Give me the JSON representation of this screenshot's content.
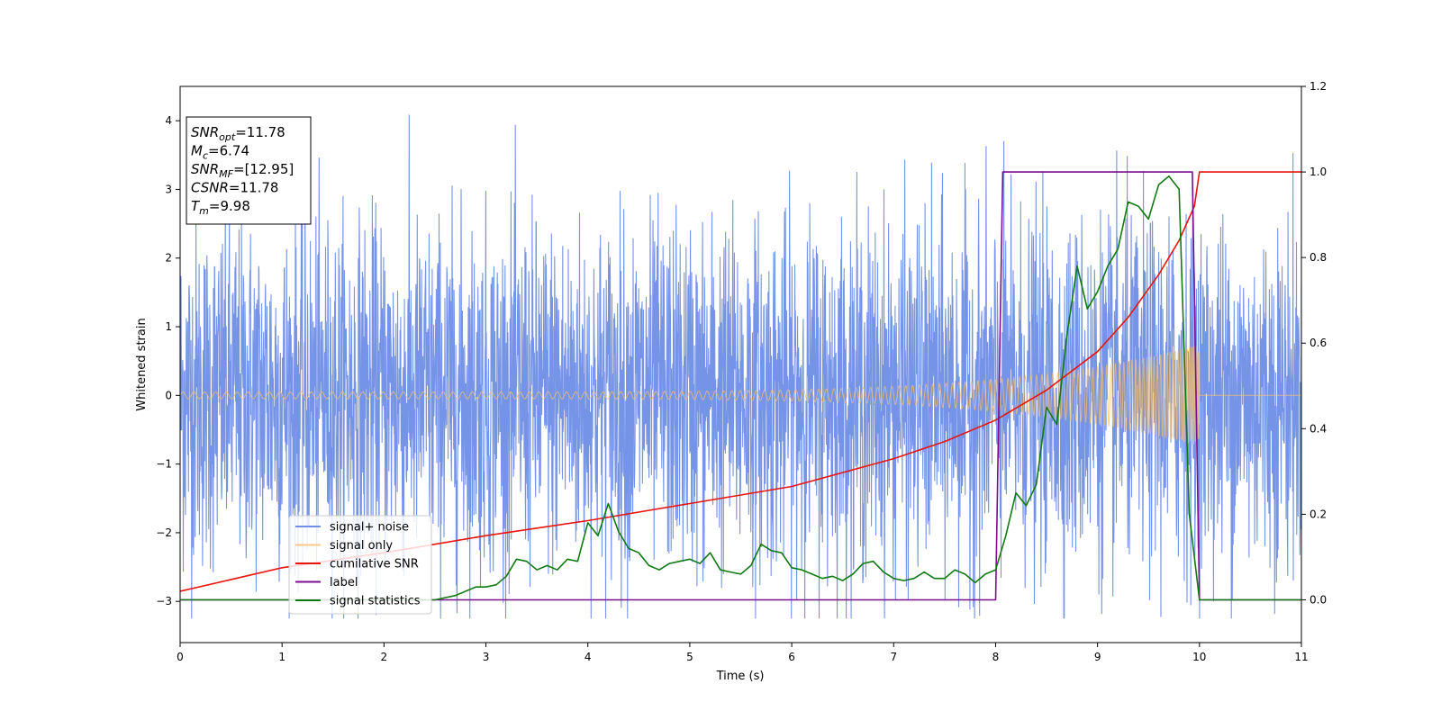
{
  "chart_data": {
    "type": "line",
    "xlabel": "Time (s)",
    "ylabel": "Whitened strain",
    "xlim": [
      0,
      11
    ],
    "ylim": [
      -3.6,
      4.5
    ],
    "y2lim": [
      -0.1,
      1.2
    ],
    "x_ticks": [
      0,
      1,
      2,
      3,
      4,
      5,
      6,
      7,
      8,
      9,
      10,
      11
    ],
    "y_ticks": [
      -3,
      -2,
      -1,
      0,
      1,
      2,
      3,
      4
    ],
    "y_tick_labels": [
      "−3",
      "−2",
      "−1",
      "0",
      "1",
      "2",
      "3",
      "4"
    ],
    "y2_ticks": [
      0.0,
      0.2,
      0.4,
      0.6,
      0.8,
      1.0,
      1.2
    ],
    "y2_tick_labels": [
      "0.0",
      "0.2",
      "0.4",
      "0.6",
      "0.8",
      "1.0",
      "1.2"
    ],
    "grid": false,
    "legend_placement": "lower-left",
    "info_box": [
      {
        "main": "SNR",
        "sub": "opt",
        "rest": "=11.78"
      },
      {
        "main": "M",
        "sub": "c",
        "rest": "=6.74"
      },
      {
        "main": "SNR",
        "sub": "MF",
        "rest": "=[12.95]"
      },
      {
        "main": "CSNR",
        "sub": "",
        "rest": "=11.78"
      },
      {
        "main": "T",
        "sub": "m",
        "rest": "=9.98"
      }
    ],
    "series": [
      {
        "name": "signal+ noise",
        "color": "#6f8ee6",
        "axis": "left",
        "kind": "noise",
        "typical_band": [
          -1.6,
          1.6
        ],
        "peak_max": 4.15,
        "peak_min": -3.25
      },
      {
        "name": "signal only",
        "color": "#f5c06a",
        "axis": "left",
        "kind": "chirp",
        "amplitude_start": 0.05,
        "amplitude_end": 0.75,
        "t_merge": 10.0
      },
      {
        "name": "cumilative SNR",
        "color": "#e8140c",
        "axis": "right",
        "x": [
          0,
          1,
          2,
          3,
          4,
          5,
          6,
          7,
          7.5,
          8,
          8.5,
          9,
          9.3,
          9.6,
          9.8,
          9.95,
          10.0,
          11
        ],
        "y": [
          0.02,
          0.075,
          0.11,
          0.15,
          0.185,
          0.225,
          0.265,
          0.33,
          0.37,
          0.42,
          0.49,
          0.58,
          0.66,
          0.76,
          0.84,
          0.92,
          1.0,
          1.0
        ]
      },
      {
        "name": "label",
        "color": "#7b0d8f",
        "axis": "right",
        "x": [
          0,
          8.0,
          8.07,
          9.93,
          10.0,
          11
        ],
        "y": [
          0,
          0,
          1.0,
          1.0,
          0,
          0
        ]
      },
      {
        "name": "signal statistics",
        "color": "#0f7a12",
        "axis": "right",
        "x": [
          0,
          2.5,
          2.7,
          2.9,
          3.0,
          3.1,
          3.2,
          3.3,
          3.4,
          3.5,
          3.6,
          3.7,
          3.8,
          3.9,
          4.0,
          4.1,
          4.2,
          4.3,
          4.4,
          4.5,
          4.6,
          4.7,
          4.8,
          4.9,
          5.0,
          5.1,
          5.2,
          5.3,
          5.4,
          5.5,
          5.6,
          5.7,
          5.8,
          5.9,
          6.0,
          6.1,
          6.2,
          6.3,
          6.4,
          6.5,
          6.6,
          6.7,
          6.8,
          6.9,
          7.0,
          7.1,
          7.2,
          7.3,
          7.4,
          7.5,
          7.6,
          7.7,
          7.8,
          7.9,
          8.0,
          8.1,
          8.2,
          8.3,
          8.4,
          8.5,
          8.6,
          8.7,
          8.8,
          8.9,
          9.0,
          9.1,
          9.2,
          9.3,
          9.4,
          9.5,
          9.6,
          9.7,
          9.8,
          9.9,
          10.0,
          10.1,
          11
        ],
        "y": [
          0.0,
          0.0,
          0.01,
          0.03,
          0.03,
          0.035,
          0.055,
          0.095,
          0.09,
          0.07,
          0.08,
          0.07,
          0.095,
          0.09,
          0.18,
          0.15,
          0.225,
          0.16,
          0.12,
          0.11,
          0.08,
          0.07,
          0.085,
          0.09,
          0.095,
          0.085,
          0.11,
          0.07,
          0.065,
          0.06,
          0.08,
          0.13,
          0.115,
          0.11,
          0.075,
          0.07,
          0.06,
          0.05,
          0.055,
          0.045,
          0.06,
          0.085,
          0.09,
          0.065,
          0.05,
          0.045,
          0.05,
          0.065,
          0.05,
          0.05,
          0.07,
          0.06,
          0.04,
          0.06,
          0.07,
          0.15,
          0.25,
          0.22,
          0.27,
          0.45,
          0.41,
          0.62,
          0.78,
          0.68,
          0.72,
          0.78,
          0.82,
          0.93,
          0.92,
          0.89,
          0.97,
          0.99,
          0.96,
          0.2,
          0.0,
          0.0,
          0.0
        ]
      }
    ]
  }
}
